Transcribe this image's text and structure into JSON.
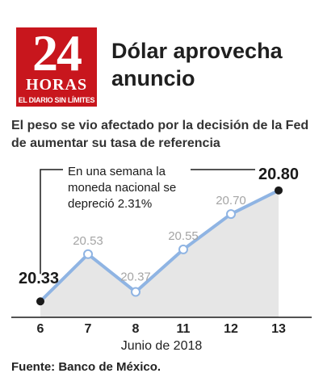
{
  "logo": {
    "number": "24",
    "name": "HORAS",
    "tagline": "EL DIARIO SIN LÍMITES"
  },
  "headline": "Dólar aprovecha anuncio",
  "subtitle": "El peso se vio afectado por la decisión de la Fed de aumentar su tasa de referencia",
  "annotation": "En una semana la moneda nacional se depreció 2.31%",
  "source": "Fuente: Banco de México.",
  "colors": {
    "line": "#8fb4e3",
    "area": "#e6e6e6",
    "point": "#1a1a1a",
    "logo": "#c8161d"
  },
  "chart_data": {
    "type": "area",
    "title": "",
    "xlabel": "Junio de 2018",
    "ylabel": "",
    "categories": [
      "6",
      "7",
      "8",
      "11",
      "12",
      "13"
    ],
    "series": [
      {
        "values": [
          20.33,
          20.53,
          20.37,
          20.55,
          20.7,
          20.8
        ]
      }
    ],
    "data_labels": [
      "20.33",
      "20.53",
      "20.37",
      "20.55",
      "20.70",
      "20.80"
    ],
    "highlighted": [
      0,
      5
    ],
    "ylim": [
      20.3,
      20.82
    ],
    "grid": false
  }
}
